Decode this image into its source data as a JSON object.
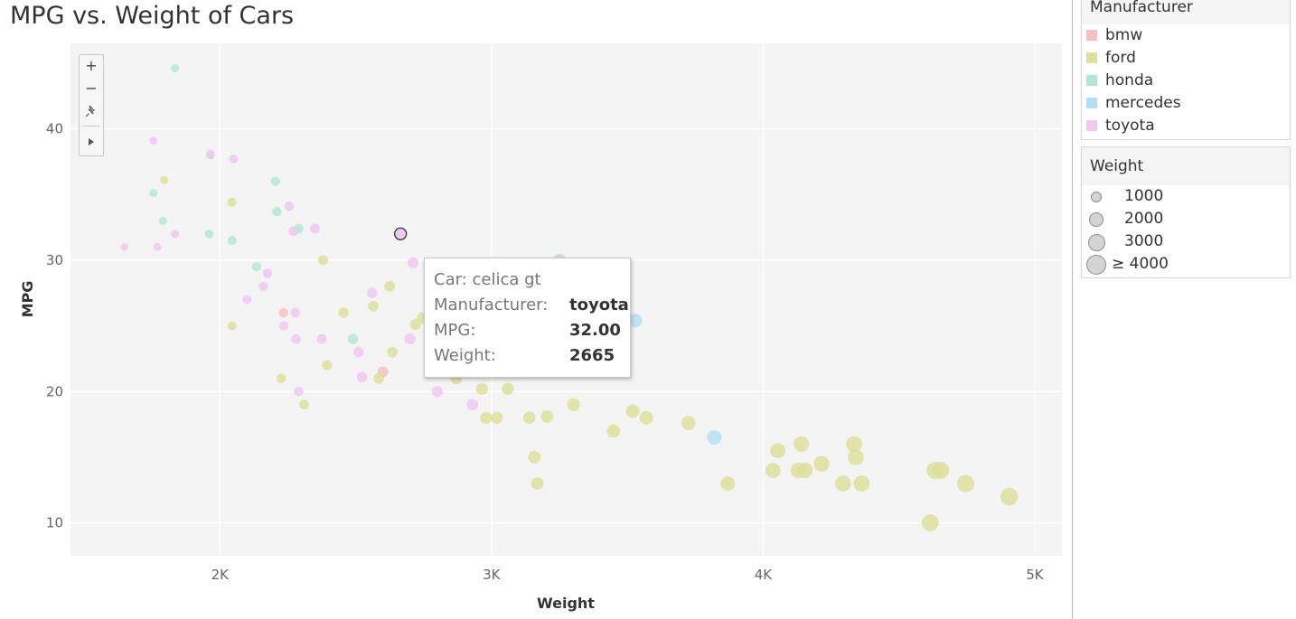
{
  "title": "MPG vs. Weight of Cars",
  "colors": {
    "bmw": "#f3c2bf",
    "ford": "#dede9e",
    "honda": "#b5e6d2",
    "mercedes": "#b5dff5",
    "toyota": "#f1c8f1"
  },
  "zoom_controls": {
    "zoom_in": "+",
    "zoom_out": "−",
    "pin": "pin-icon",
    "play": "play-icon"
  },
  "legend_manufacturer": {
    "title": "Manufacturer",
    "items": [
      {
        "label": "bmw",
        "color": "#f3c2bf"
      },
      {
        "label": "ford",
        "color": "#dede9e"
      },
      {
        "label": "honda",
        "color": "#b5e6d2"
      },
      {
        "label": "mercedes",
        "color": "#b5dff5"
      },
      {
        "label": "toyota",
        "color": "#f1c8f1"
      }
    ]
  },
  "legend_weight": {
    "title": "Weight",
    "items": [
      {
        "label": "1000",
        "value": 1000
      },
      {
        "label": "2000",
        "value": 2000
      },
      {
        "label": "3000",
        "value": 3000
      },
      {
        "label": "≥ 4000",
        "value": 4000
      }
    ]
  },
  "tooltip": {
    "car_label": "Car:",
    "car_value": "celica gt",
    "manufacturer_label": "Manufacturer:",
    "manufacturer_value": "toyota",
    "mpg_label": "MPG:",
    "mpg_value": "32.00",
    "weight_label": "Weight:",
    "weight_value": "2665"
  },
  "chart_data": {
    "type": "scatter",
    "title": "MPG vs. Weight of Cars",
    "xlabel": "Weight",
    "ylabel": "MPG",
    "xlim": [
      1450,
      5100
    ],
    "ylim": [
      7.5,
      46.5
    ],
    "x_ticks": [
      {
        "value": 2000,
        "label": "2K"
      },
      {
        "value": 3000,
        "label": "3K"
      },
      {
        "value": 4000,
        "label": "4K"
      },
      {
        "value": 5000,
        "label": "5K"
      }
    ],
    "y_ticks": [
      {
        "value": 10,
        "label": "10"
      },
      {
        "value": 20,
        "label": "20"
      },
      {
        "value": 30,
        "label": "30"
      },
      {
        "value": 40,
        "label": "40"
      }
    ],
    "grid": true,
    "size_by": "Weight",
    "color_by": "Manufacturer",
    "highlighted": {
      "car": "celica gt",
      "manufacturer": "toyota",
      "x": 2665,
      "y": 32.0
    },
    "series": [
      {
        "name": "bmw",
        "points": [
          [
            2234,
            26
          ],
          [
            2600,
            21.5
          ]
        ]
      },
      {
        "name": "ford",
        "points": [
          [
            2045,
            34.4
          ],
          [
            1795,
            36.1
          ],
          [
            2045,
            25
          ],
          [
            2226,
            21
          ],
          [
            2310,
            19
          ],
          [
            2380,
            30
          ],
          [
            2395,
            22
          ],
          [
            2455,
            26
          ],
          [
            2565,
            26.5
          ],
          [
            2585,
            21
          ],
          [
            2625,
            28
          ],
          [
            2635,
            23
          ],
          [
            2720,
            25.1
          ],
          [
            2745,
            25.6
          ],
          [
            2870,
            21
          ],
          [
            2965,
            20.2
          ],
          [
            2980,
            18
          ],
          [
            3020,
            18
          ],
          [
            3060,
            20.2
          ],
          [
            3139,
            18
          ],
          [
            3158,
            15
          ],
          [
            3169,
            13
          ],
          [
            3205,
            18.1
          ],
          [
            3302,
            19
          ],
          [
            3449,
            17
          ],
          [
            3520,
            18.5
          ],
          [
            3570,
            18
          ],
          [
            3725,
            17.6
          ],
          [
            3870,
            13
          ],
          [
            4036,
            14
          ],
          [
            4054,
            15.5
          ],
          [
            4129,
            14
          ],
          [
            4141,
            16
          ],
          [
            4154,
            14
          ],
          [
            4215,
            14.5
          ],
          [
            4294,
            13
          ],
          [
            4335,
            16
          ],
          [
            4341,
            15
          ],
          [
            4363,
            13
          ],
          [
            4615,
            10
          ],
          [
            4633,
            14
          ],
          [
            4654,
            14
          ],
          [
            4746,
            13
          ],
          [
            4906,
            12
          ]
        ]
      },
      {
        "name": "honda",
        "points": [
          [
            1835,
            44.6
          ],
          [
            1755,
            35.1
          ],
          [
            1790,
            33
          ],
          [
            1960,
            32
          ],
          [
            1965,
            38
          ],
          [
            2045,
            31.5
          ],
          [
            2135,
            29.5
          ],
          [
            2205,
            36
          ],
          [
            2210,
            33.7
          ],
          [
            2290,
            32.4
          ],
          [
            2490,
            24
          ]
        ]
      },
      {
        "name": "mercedes",
        "points": [
          [
            3250,
            30
          ],
          [
            3530,
            25.4
          ],
          [
            3820,
            16.5
          ]
        ]
      },
      {
        "name": "toyota",
        "points": [
          [
            1649,
            31
          ],
          [
            1755,
            39.1
          ],
          [
            1770,
            31
          ],
          [
            1835,
            32
          ],
          [
            1965,
            38.1
          ],
          [
            2050,
            37.7
          ],
          [
            2100,
            27
          ],
          [
            2160,
            28
          ],
          [
            2175,
            29
          ],
          [
            2235,
            25
          ],
          [
            2255,
            34.1
          ],
          [
            2270,
            32.2
          ],
          [
            2278,
            26
          ],
          [
            2280,
            24
          ],
          [
            2290,
            20
          ],
          [
            2350,
            32.4
          ],
          [
            2375,
            24
          ],
          [
            2511,
            23
          ],
          [
            2523,
            21.1
          ],
          [
            2560,
            27.5
          ],
          [
            2665,
            32
          ],
          [
            2700,
            24
          ],
          [
            2711,
            29.8
          ],
          [
            2800,
            20
          ],
          [
            2930,
            19
          ]
        ]
      }
    ]
  }
}
